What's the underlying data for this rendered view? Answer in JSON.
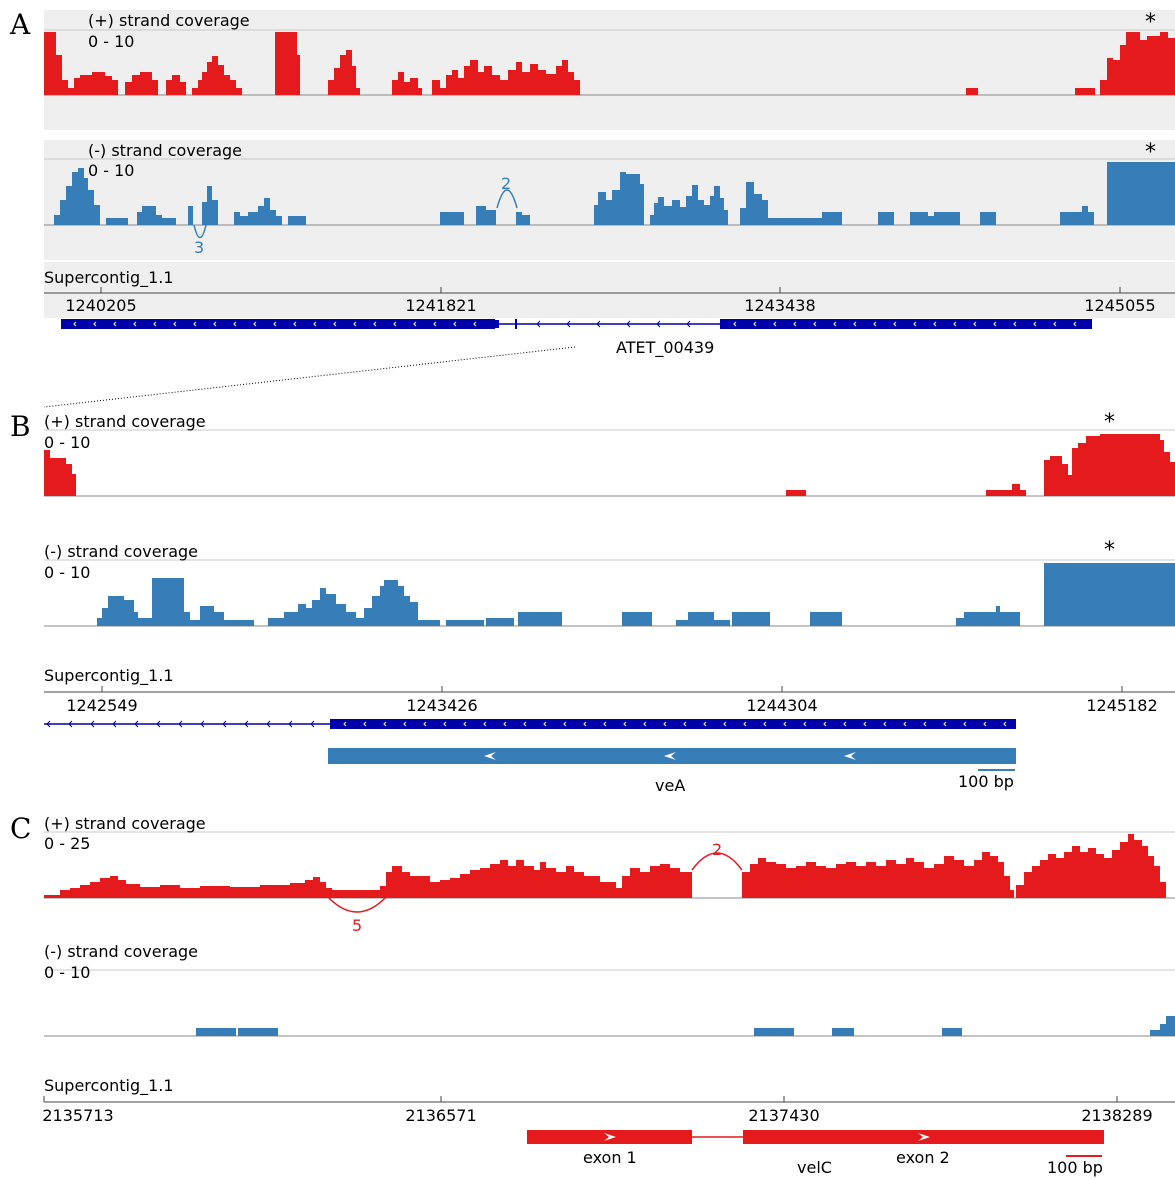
{
  "panels": [
    {
      "letter": "A",
      "plus_label": "(+) strand coverage",
      "plus_range": "0 - 10",
      "minus_label": "(-) strand coverage",
      "minus_range": "0 - 10",
      "contig": "Supercontig_1.1",
      "ticks": [
        "1240205",
        "1241821",
        "1243438",
        "1245055"
      ],
      "gene_label": "ATET_00439",
      "plus_star": "*",
      "minus_star": "*",
      "junctions": [
        {
          "label": "2",
          "strand": "minus"
        },
        {
          "label": "3",
          "strand": "minus"
        }
      ],
      "colors": {
        "plus": "#e41a1c",
        "minus": "#377eb8",
        "gene": "#0000aa"
      }
    },
    {
      "letter": "B",
      "plus_label": "(+) strand coverage",
      "plus_range": "0 - 10",
      "minus_label": "(-) strand coverage",
      "minus_range": "0 - 10",
      "contig": "Supercontig_1.1",
      "ticks": [
        "1242549",
        "1243426",
        "1244304",
        "1245182"
      ],
      "gene_label": "veA",
      "scale_label": "100 bp",
      "plus_star": "*",
      "minus_star": "*",
      "colors": {
        "plus": "#e41a1c",
        "minus": "#377eb8",
        "gene": "#0000aa"
      }
    },
    {
      "letter": "C",
      "plus_label": "(+) strand coverage",
      "plus_range": "0 - 25",
      "minus_label": "(-) strand coverage",
      "minus_range": "0 - 10",
      "contig": "Supercontig_1.1",
      "ticks": [
        "2135713",
        "2136571",
        "2137430",
        "2138289"
      ],
      "gene_label": "velC",
      "exon1_label": "exon 1",
      "exon2_label": "exon 2",
      "scale_label": "100 bp",
      "junctions": [
        {
          "label": "2",
          "strand": "plus"
        },
        {
          "label": "5",
          "strand": "plus"
        }
      ],
      "colors": {
        "plus": "#e41a1c",
        "minus": "#377eb8",
        "gene": "#e41a1c"
      }
    }
  ]
}
